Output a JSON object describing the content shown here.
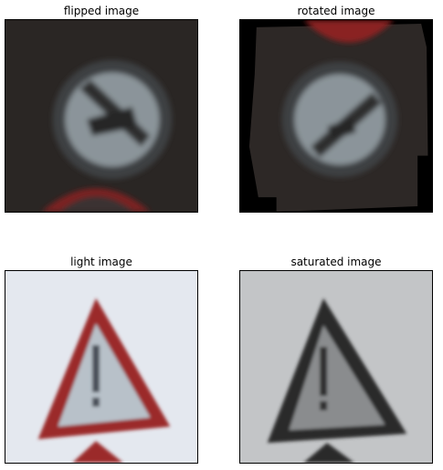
{
  "figure": {
    "panels": [
      {
        "title": "flipped image",
        "content": "blurred round traffic sign with diagonal stripe on dark background, red triangle edge at bottom"
      },
      {
        "title": "rotated image",
        "content": "same round sign rotated with black corner fill, red sign edge at top"
      },
      {
        "title": "light image",
        "content": "red warning triangle with exclamation mark on pale background"
      },
      {
        "title": "saturated image",
        "content": "dark grayscale warning triangle with exclamation mark on gray background"
      }
    ]
  },
  "colors": {
    "dark_bg": "#2a2624",
    "light_bg": "#e4e8ef",
    "gray_bg": "#c3c5c7",
    "sign_red": "#9b2a2a",
    "sign_white": "#bfc6cc",
    "sign_dark": "#2e2e2e"
  }
}
